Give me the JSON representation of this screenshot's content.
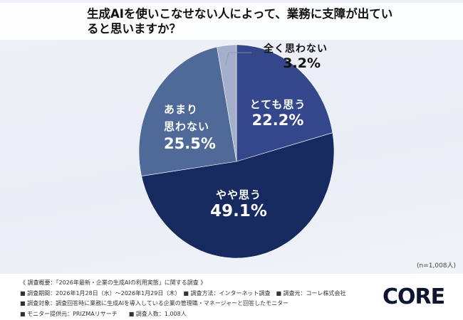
{
  "chart_data": {
    "type": "pie",
    "title": "生成AIを使いこなせない人によって、業務に支障が出ていると思いますか？",
    "categories": [
      "とても思う",
      "やや思う",
      "あまり思わない",
      "全く思わない"
    ],
    "category_lines": [
      [
        "とても思う"
      ],
      [
        "やや思う"
      ],
      [
        "あまり",
        "思わない"
      ],
      [
        "全く思わない"
      ]
    ],
    "values": [
      22.2,
      49.1,
      25.5,
      3.2
    ],
    "labels": [
      "22.2%",
      "49.1%",
      "25.5%",
      "3.2%"
    ],
    "colors": [
      "#34478a",
      "#172a5f",
      "#4f6a98",
      "#a4afcb"
    ],
    "start": "12 o'clock, clockwise",
    "n_label": "(n=1,008人)"
  },
  "notes": [
    "《 調査概要：「2026年最新・企業の生成AIの利用実態」に関する調査 》",
    "■ 調査期間：2026年1月28日（水）～2026年1月29日（木）　■ 調査方法：インターネット調査　■ 調査元：コーレ株式会社",
    "■ 調査対象：調査回答時に業務に生成AIを導入している企業の管理職・マネージャーと回答したモニター",
    "■ モニター提供元：PRIZMAリサーチ　　■ 調査人数：1,008人"
  ],
  "logo": "CORE"
}
